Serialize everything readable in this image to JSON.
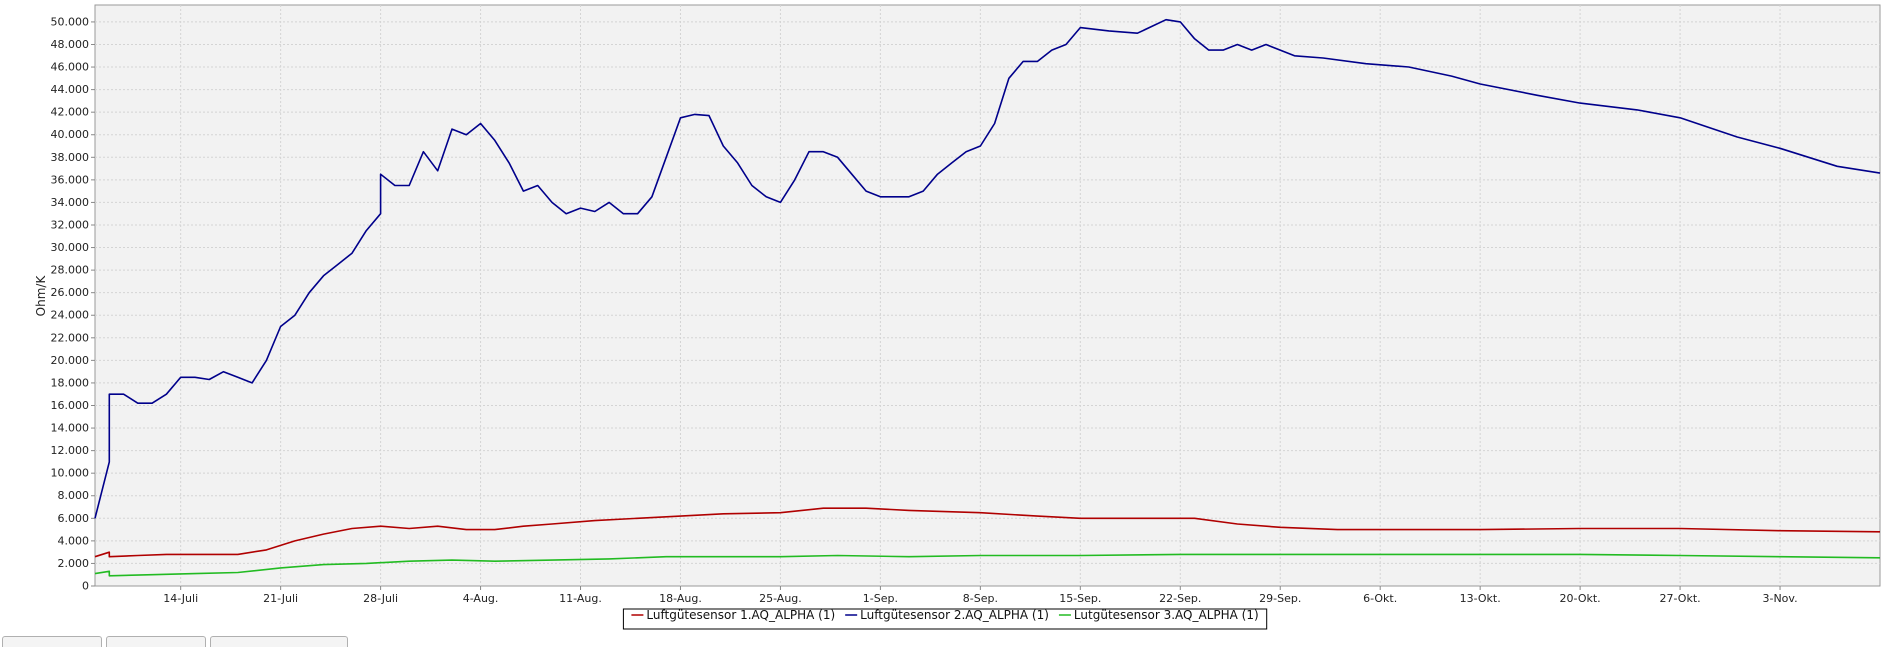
{
  "chart_data": {
    "type": "line",
    "title": "",
    "xlabel": "",
    "ylabel": "Ohm/K",
    "ylim": [
      0,
      51500
    ],
    "xlim": [
      "2019-07-08",
      "2019-11-10"
    ],
    "grid": true,
    "legend_position": "bottom-center",
    "y_ticks": [
      {
        "value": 0,
        "label": "0"
      },
      {
        "value": 2000,
        "label": "2.000"
      },
      {
        "value": 4000,
        "label": "4.000"
      },
      {
        "value": 6000,
        "label": "6.000"
      },
      {
        "value": 8000,
        "label": "8.000"
      },
      {
        "value": 10000,
        "label": "10.000"
      },
      {
        "value": 12000,
        "label": "12.000"
      },
      {
        "value": 14000,
        "label": "14.000"
      },
      {
        "value": 16000,
        "label": "16.000"
      },
      {
        "value": 18000,
        "label": "18.000"
      },
      {
        "value": 20000,
        "label": "20.000"
      },
      {
        "value": 22000,
        "label": "22.000"
      },
      {
        "value": 24000,
        "label": "24.000"
      },
      {
        "value": 26000,
        "label": "26.000"
      },
      {
        "value": 28000,
        "label": "28.000"
      },
      {
        "value": 30000,
        "label": "30.000"
      },
      {
        "value": 32000,
        "label": "32.000"
      },
      {
        "value": 34000,
        "label": "34.000"
      },
      {
        "value": 36000,
        "label": "36.000"
      },
      {
        "value": 38000,
        "label": "38.000"
      },
      {
        "value": 40000,
        "label": "40.000"
      },
      {
        "value": 42000,
        "label": "42.000"
      },
      {
        "value": 44000,
        "label": "44.000"
      },
      {
        "value": 46000,
        "label": "46.000"
      },
      {
        "value": 48000,
        "label": "48.000"
      },
      {
        "value": 50000,
        "label": "50.000"
      }
    ],
    "x_ticks": [
      {
        "date": "2019-07-14",
        "label": "14-Juli"
      },
      {
        "date": "2019-07-21",
        "label": "21-Juli"
      },
      {
        "date": "2019-07-28",
        "label": "28-Juli"
      },
      {
        "date": "2019-08-04",
        "label": "4-Aug."
      },
      {
        "date": "2019-08-11",
        "label": "11-Aug."
      },
      {
        "date": "2019-08-18",
        "label": "18-Aug."
      },
      {
        "date": "2019-08-25",
        "label": "25-Aug."
      },
      {
        "date": "2019-09-01",
        "label": "1-Sep."
      },
      {
        "date": "2019-09-08",
        "label": "8-Sep."
      },
      {
        "date": "2019-09-15",
        "label": "15-Sep."
      },
      {
        "date": "2019-09-22",
        "label": "22-Sep."
      },
      {
        "date": "2019-09-29",
        "label": "29-Sep."
      },
      {
        "date": "2019-10-06",
        "label": "6-Okt."
      },
      {
        "date": "2019-10-13",
        "label": "13-Okt."
      },
      {
        "date": "2019-10-20",
        "label": "20-Okt."
      },
      {
        "date": "2019-10-27",
        "label": "27-Okt."
      },
      {
        "date": "2019-11-03",
        "label": "3-Nov."
      }
    ],
    "series": [
      {
        "name": "Luftgütesensor 1.AQ_ALPHA (1)",
        "color": "#b00000",
        "points": [
          [
            "2019-07-08",
            2600
          ],
          [
            "2019-07-09",
            3000
          ],
          [
            "2019-07-09",
            2600
          ],
          [
            "2019-07-11",
            2700
          ],
          [
            "2019-07-13",
            2800
          ],
          [
            "2019-07-15",
            2800
          ],
          [
            "2019-07-18",
            2800
          ],
          [
            "2019-07-20",
            3200
          ],
          [
            "2019-07-22",
            4000
          ],
          [
            "2019-07-24",
            4600
          ],
          [
            "2019-07-26",
            5100
          ],
          [
            "2019-07-28",
            5300
          ],
          [
            "2019-07-30",
            5100
          ],
          [
            "2019-08-01",
            5300
          ],
          [
            "2019-08-03",
            5000
          ],
          [
            "2019-08-05",
            5000
          ],
          [
            "2019-08-07",
            5300
          ],
          [
            "2019-08-09",
            5500
          ],
          [
            "2019-08-12",
            5800
          ],
          [
            "2019-08-15",
            6000
          ],
          [
            "2019-08-18",
            6200
          ],
          [
            "2019-08-21",
            6400
          ],
          [
            "2019-08-25",
            6500
          ],
          [
            "2019-08-28",
            6900
          ],
          [
            "2019-08-31",
            6900
          ],
          [
            "2019-09-03",
            6700
          ],
          [
            "2019-09-08",
            6500
          ],
          [
            "2019-09-12",
            6200
          ],
          [
            "2019-09-15",
            6000
          ],
          [
            "2019-09-20",
            6000
          ],
          [
            "2019-09-23",
            6000
          ],
          [
            "2019-09-26",
            5500
          ],
          [
            "2019-09-29",
            5200
          ],
          [
            "2019-10-03",
            5000
          ],
          [
            "2019-10-08",
            5000
          ],
          [
            "2019-10-13",
            5000
          ],
          [
            "2019-10-20",
            5100
          ],
          [
            "2019-10-27",
            5100
          ],
          [
            "2019-11-03",
            4900
          ],
          [
            "2019-11-10",
            4800
          ]
        ]
      },
      {
        "name": "Luftgütesensor 2.AQ_ALPHA (1)",
        "color": "#00008b",
        "points": [
          [
            "2019-07-08",
            6000
          ],
          [
            "2019-07-09",
            11000
          ],
          [
            "2019-07-09",
            17000
          ],
          [
            "2019-07-10",
            17000
          ],
          [
            "2019-07-11",
            16200
          ],
          [
            "2019-07-12",
            16200
          ],
          [
            "2019-07-13",
            17000
          ],
          [
            "2019-07-14",
            18500
          ],
          [
            "2019-07-15",
            18500
          ],
          [
            "2019-07-16",
            18300
          ],
          [
            "2019-07-17",
            19000
          ],
          [
            "2019-07-18",
            18500
          ],
          [
            "2019-07-19",
            18000
          ],
          [
            "2019-07-20",
            20000
          ],
          [
            "2019-07-21",
            23000
          ],
          [
            "2019-07-22",
            24000
          ],
          [
            "2019-07-23",
            26000
          ],
          [
            "2019-07-24",
            27500
          ],
          [
            "2019-07-25",
            28500
          ],
          [
            "2019-07-26",
            29500
          ],
          [
            "2019-07-27",
            31500
          ],
          [
            "2019-07-28",
            33000
          ],
          [
            "2019-07-28",
            36500
          ],
          [
            "2019-07-29",
            35500
          ],
          [
            "2019-07-30",
            35500
          ],
          [
            "2019-07-31",
            38500
          ],
          [
            "2019-08-01",
            36800
          ],
          [
            "2019-08-02",
            40500
          ],
          [
            "2019-08-03",
            40000
          ],
          [
            "2019-08-04",
            41000
          ],
          [
            "2019-08-05",
            39500
          ],
          [
            "2019-08-06",
            37500
          ],
          [
            "2019-08-07",
            35000
          ],
          [
            "2019-08-08",
            35500
          ],
          [
            "2019-08-09",
            34000
          ],
          [
            "2019-08-10",
            33000
          ],
          [
            "2019-08-11",
            33500
          ],
          [
            "2019-08-12",
            33200
          ],
          [
            "2019-08-13",
            34000
          ],
          [
            "2019-08-14",
            33000
          ],
          [
            "2019-08-15",
            33000
          ],
          [
            "2019-08-16",
            34500
          ],
          [
            "2019-08-17",
            38000
          ],
          [
            "2019-08-18",
            41500
          ],
          [
            "2019-08-19",
            41800
          ],
          [
            "2019-08-20",
            41700
          ],
          [
            "2019-08-21",
            39000
          ],
          [
            "2019-08-22",
            37500
          ],
          [
            "2019-08-23",
            35500
          ],
          [
            "2019-08-24",
            34500
          ],
          [
            "2019-08-25",
            34000
          ],
          [
            "2019-08-26",
            36000
          ],
          [
            "2019-08-27",
            38500
          ],
          [
            "2019-08-28",
            38500
          ],
          [
            "2019-08-29",
            38000
          ],
          [
            "2019-08-30",
            36500
          ],
          [
            "2019-08-31",
            35000
          ],
          [
            "2019-09-01",
            34500
          ],
          [
            "2019-09-02",
            34500
          ],
          [
            "2019-09-03",
            34500
          ],
          [
            "2019-09-04",
            35000
          ],
          [
            "2019-09-05",
            36500
          ],
          [
            "2019-09-06",
            37500
          ],
          [
            "2019-09-07",
            38500
          ],
          [
            "2019-09-08",
            39000
          ],
          [
            "2019-09-09",
            41000
          ],
          [
            "2019-09-10",
            45000
          ],
          [
            "2019-09-11",
            46500
          ],
          [
            "2019-09-12",
            46500
          ],
          [
            "2019-09-13",
            47500
          ],
          [
            "2019-09-14",
            48000
          ],
          [
            "2019-09-15",
            49500
          ],
          [
            "2019-09-17",
            49200
          ],
          [
            "2019-09-19",
            49000
          ],
          [
            "2019-09-21",
            50200
          ],
          [
            "2019-09-22",
            50000
          ],
          [
            "2019-09-23",
            48500
          ],
          [
            "2019-09-24",
            47500
          ],
          [
            "2019-09-25",
            47500
          ],
          [
            "2019-09-26",
            48000
          ],
          [
            "2019-09-27",
            47500
          ],
          [
            "2019-09-28",
            48000
          ],
          [
            "2019-09-30",
            47000
          ],
          [
            "2019-10-02",
            46800
          ],
          [
            "2019-10-05",
            46300
          ],
          [
            "2019-10-08",
            46000
          ],
          [
            "2019-10-11",
            45200
          ],
          [
            "2019-10-13",
            44500
          ],
          [
            "2019-10-17",
            43500
          ],
          [
            "2019-10-20",
            42800
          ],
          [
            "2019-10-24",
            42200
          ],
          [
            "2019-10-27",
            41500
          ],
          [
            "2019-10-31",
            39800
          ],
          [
            "2019-11-03",
            38800
          ],
          [
            "2019-11-07",
            37200
          ],
          [
            "2019-11-10",
            36600
          ]
        ]
      },
      {
        "name": "Lutgütesensor 3.AQ_ALPHA (1)",
        "color": "#22bb22",
        "points": [
          [
            "2019-07-08",
            1100
          ],
          [
            "2019-07-09",
            1300
          ],
          [
            "2019-07-09",
            900
          ],
          [
            "2019-07-12",
            1000
          ],
          [
            "2019-07-15",
            1100
          ],
          [
            "2019-07-18",
            1200
          ],
          [
            "2019-07-21",
            1600
          ],
          [
            "2019-07-24",
            1900
          ],
          [
            "2019-07-27",
            2000
          ],
          [
            "2019-07-30",
            2200
          ],
          [
            "2019-08-02",
            2300
          ],
          [
            "2019-08-05",
            2200
          ],
          [
            "2019-08-09",
            2300
          ],
          [
            "2019-08-13",
            2400
          ],
          [
            "2019-08-17",
            2600
          ],
          [
            "2019-08-21",
            2600
          ],
          [
            "2019-08-25",
            2600
          ],
          [
            "2019-08-29",
            2700
          ],
          [
            "2019-09-03",
            2600
          ],
          [
            "2019-09-08",
            2700
          ],
          [
            "2019-09-15",
            2700
          ],
          [
            "2019-09-22",
            2800
          ],
          [
            "2019-09-29",
            2800
          ],
          [
            "2019-10-06",
            2800
          ],
          [
            "2019-10-13",
            2800
          ],
          [
            "2019-10-20",
            2800
          ],
          [
            "2019-10-27",
            2700
          ],
          [
            "2019-11-03",
            2600
          ],
          [
            "2019-11-10",
            2500
          ]
        ]
      }
    ]
  }
}
